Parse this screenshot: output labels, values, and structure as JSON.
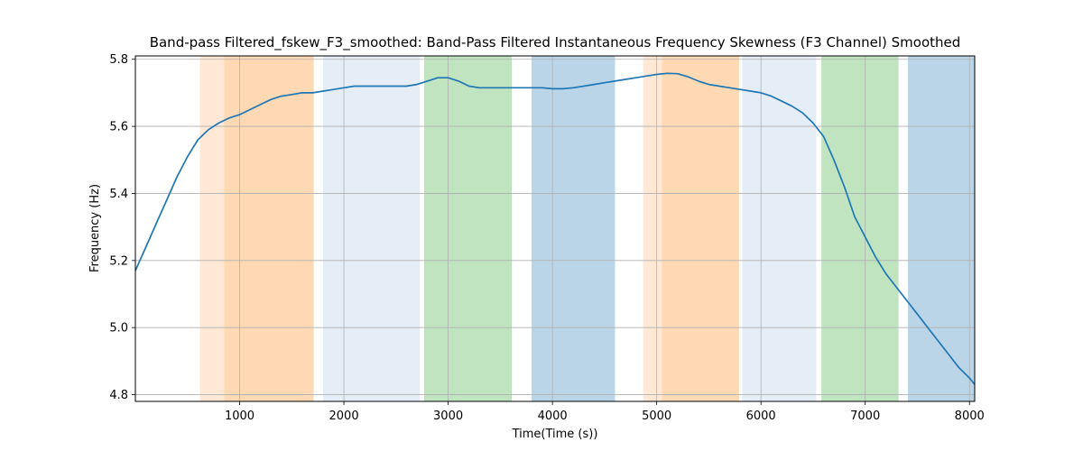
{
  "chart_data": {
    "type": "line",
    "title": "Band-pass Filtered_fskew_F3_smoothed: Band-Pass Filtered Instantaneous Frequency Skewness (F3 Channel) Smoothed",
    "xlabel": "Time(Time (s))",
    "ylabel": "Frequency (Hz)",
    "xlim": [
      0,
      8050
    ],
    "ylim": [
      4.78,
      5.81
    ],
    "xticks": [
      1000,
      2000,
      3000,
      4000,
      5000,
      6000,
      7000,
      8000
    ],
    "yticks": [
      4.8,
      5.0,
      5.2,
      5.4,
      5.6,
      5.8
    ],
    "ytick_labels": [
      "4.8",
      "5.0",
      "5.2",
      "5.4",
      "5.6",
      "5.8"
    ],
    "grid": true,
    "line_color": "#1f77b4",
    "bands": [
      {
        "x0": 620,
        "x1": 850,
        "color": "#ffe9d6"
      },
      {
        "x0": 850,
        "x1": 1710,
        "color": "#fed9b4"
      },
      {
        "x0": 1800,
        "x1": 2730,
        "color": "#e5edf7"
      },
      {
        "x0": 2770,
        "x1": 3610,
        "color": "#c0e4c0"
      },
      {
        "x0": 3800,
        "x1": 4600,
        "color": "#bad5e8"
      },
      {
        "x0": 4870,
        "x1": 5050,
        "color": "#ffe9d6"
      },
      {
        "x0": 5050,
        "x1": 5790,
        "color": "#fed9b4"
      },
      {
        "x0": 5820,
        "x1": 6530,
        "color": "#e5edf7"
      },
      {
        "x0": 6580,
        "x1": 7320,
        "color": "#c0e4c0"
      },
      {
        "x0": 7410,
        "x1": 8050,
        "color": "#bad5e8"
      }
    ],
    "series": [
      {
        "x": [
          0,
          100,
          200,
          300,
          400,
          500,
          600,
          700,
          800,
          900,
          1000,
          1100,
          1200,
          1300,
          1400,
          1500,
          1600,
          1700,
          1800,
          1900,
          2000,
          2100,
          2200,
          2300,
          2400,
          2500,
          2600,
          2700,
          2800,
          2900,
          3000,
          3100,
          3200,
          3300,
          3400,
          3500,
          3600,
          3700,
          3800,
          3900,
          4000,
          4100,
          4200,
          4300,
          4400,
          4500,
          4600,
          4700,
          4800,
          4900,
          5000,
          5100,
          5200,
          5300,
          5400,
          5500,
          5600,
          5700,
          5800,
          5900,
          6000,
          6100,
          6200,
          6300,
          6400,
          6500,
          6600,
          6700,
          6800,
          6900,
          7000,
          7100,
          7200,
          7300,
          7400,
          7500,
          7600,
          7700,
          7800,
          7900,
          8000,
          8050
        ],
        "y": [
          5.17,
          5.24,
          5.31,
          5.38,
          5.45,
          5.51,
          5.56,
          5.59,
          5.61,
          5.625,
          5.635,
          5.65,
          5.665,
          5.68,
          5.69,
          5.695,
          5.7,
          5.7,
          5.705,
          5.71,
          5.715,
          5.72,
          5.72,
          5.72,
          5.72,
          5.72,
          5.72,
          5.725,
          5.735,
          5.745,
          5.745,
          5.735,
          5.72,
          5.715,
          5.715,
          5.715,
          5.715,
          5.715,
          5.715,
          5.715,
          5.712,
          5.712,
          5.715,
          5.72,
          5.725,
          5.73,
          5.735,
          5.74,
          5.745,
          5.75,
          5.755,
          5.758,
          5.757,
          5.748,
          5.735,
          5.725,
          5.72,
          5.715,
          5.71,
          5.705,
          5.7,
          5.69,
          5.675,
          5.66,
          5.64,
          5.61,
          5.57,
          5.5,
          5.42,
          5.33,
          5.27,
          5.21,
          5.16,
          5.12,
          5.08,
          5.04,
          5.0,
          4.96,
          4.92,
          4.88,
          4.85,
          4.83
        ]
      }
    ]
  }
}
